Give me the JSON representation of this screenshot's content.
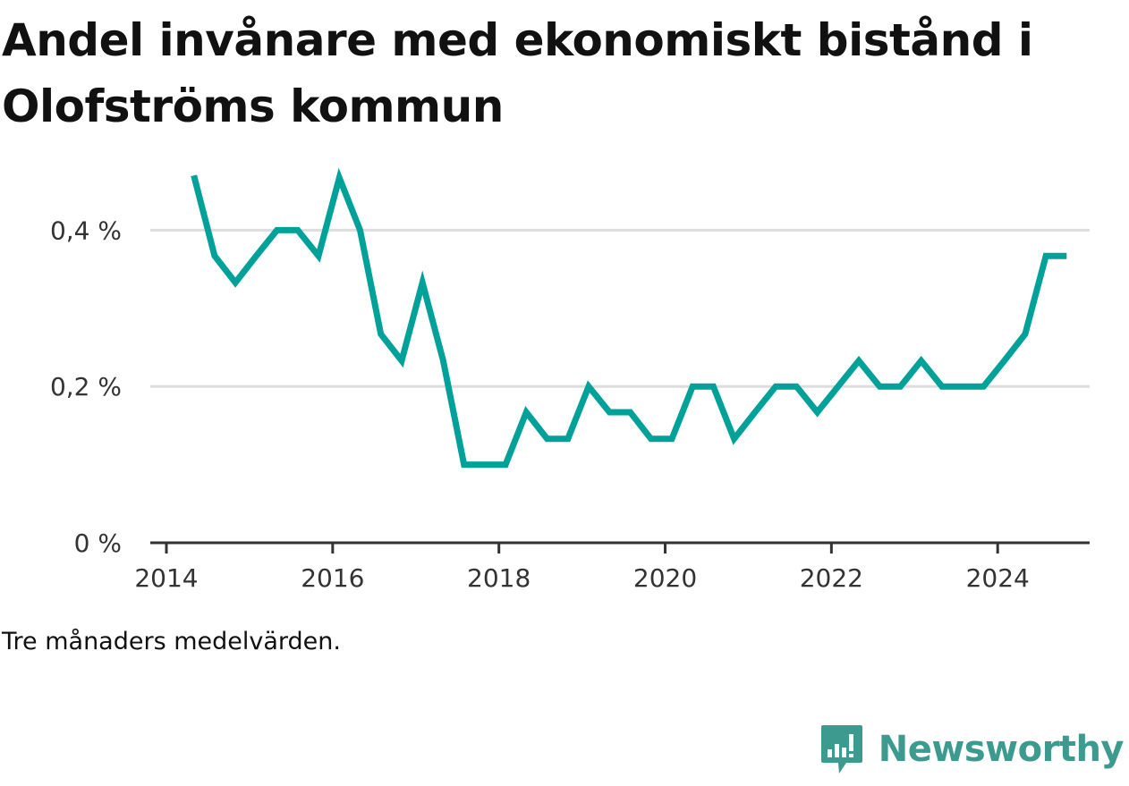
{
  "title": "Andel invånare med ekonomiskt bistånd i Olofströms kommun",
  "note": "Tre månaders medelvärden.",
  "brand": {
    "name": "Newsworthy",
    "icon": "newsworthy-logo-icon",
    "color": "#3d9a8e"
  },
  "chart_data": {
    "type": "line",
    "title": "Andel invånare med ekonomiskt bistånd i Olofströms kommun",
    "xlabel": "",
    "ylabel": "",
    "xlim": [
      2014,
      2025.3
    ],
    "ylim": [
      0,
      0.5
    ],
    "x_ticks": [
      {
        "value": 2014,
        "label": "2014"
      },
      {
        "value": 2016,
        "label": "2016"
      },
      {
        "value": 2018,
        "label": "2018"
      },
      {
        "value": 2020,
        "label": "2020"
      },
      {
        "value": 2022,
        "label": "2022"
      },
      {
        "value": 2024,
        "label": "2024"
      }
    ],
    "y_ticks": [
      {
        "value": 0,
        "label": "0 %"
      },
      {
        "value": 0.2,
        "label": "0,2 %"
      },
      {
        "value": 0.4,
        "label": "0,4 %"
      }
    ],
    "grid": true,
    "line_color": "#00a199",
    "series": [
      {
        "x": [
          2014.33,
          2014.58,
          2014.83,
          2015.08,
          2015.33,
          2015.58,
          2015.83,
          2016.08,
          2016.33,
          2016.58,
          2016.83,
          2017.08,
          2017.33,
          2017.58,
          2017.83,
          2018.08,
          2018.33,
          2018.58,
          2018.83,
          2019.08,
          2019.33,
          2019.58,
          2019.83,
          2020.08,
          2020.33,
          2020.58,
          2020.83,
          2021.08,
          2021.33,
          2021.58,
          2021.83,
          2022.08,
          2022.33,
          2022.58,
          2022.83,
          2023.08,
          2023.33,
          2023.58,
          2023.83,
          2024.08,
          2024.33,
          2024.58,
          2024.83
        ],
        "y": [
          0.47,
          0.367,
          0.333,
          0.367,
          0.4,
          0.4,
          0.367,
          0.467,
          0.4,
          0.267,
          0.233,
          0.333,
          0.233,
          0.1,
          0.1,
          0.1,
          0.167,
          0.133,
          0.133,
          0.2,
          0.167,
          0.167,
          0.133,
          0.133,
          0.2,
          0.2,
          0.133,
          0.167,
          0.2,
          0.2,
          0.167,
          0.2,
          0.233,
          0.2,
          0.2,
          0.233,
          0.2,
          0.2,
          0.2,
          0.233,
          0.267,
          0.367,
          0.367
        ]
      }
    ]
  }
}
